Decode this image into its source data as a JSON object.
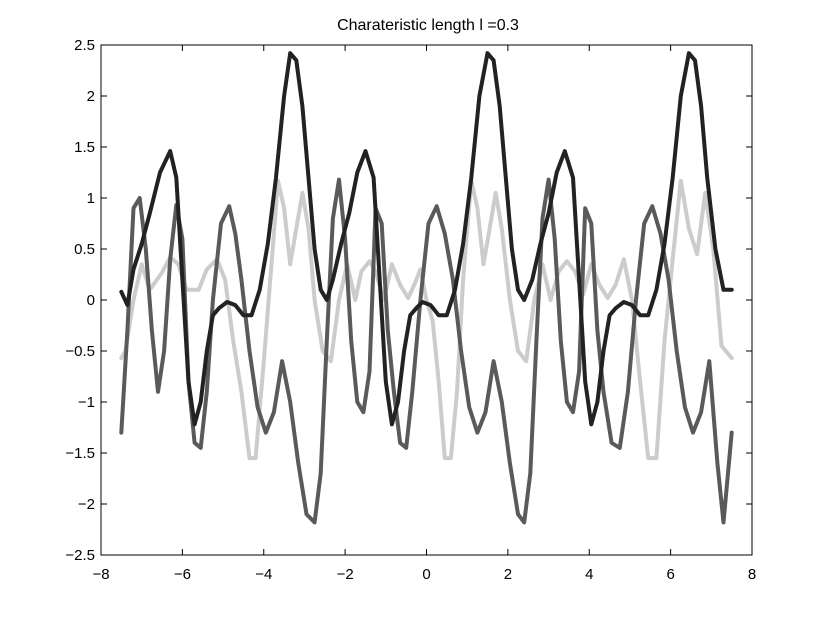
{
  "chart_data": {
    "type": "line",
    "title": "Charateristic length l =0.3",
    "xlabel": "",
    "ylabel": "",
    "xlim": [
      -8,
      8
    ],
    "ylim": [
      -2.5,
      2.5
    ],
    "xticks": [
      -8,
      -6,
      -4,
      -2,
      0,
      2,
      4,
      6,
      8
    ],
    "yticks": [
      2.5,
      2,
      1.5,
      1,
      0.5,
      0,
      -0.5,
      -1,
      -1.5,
      -2,
      -2.5
    ],
    "xtick_labels": [
      "−8",
      "−6",
      "−4",
      "−2",
      "0",
      "2",
      "4",
      "6",
      "8"
    ],
    "ytick_labels": [
      "2.5",
      "2",
      "1.5",
      "1",
      "0.5",
      "0",
      "−0.5",
      "−1",
      "−1.5",
      "−2",
      "−2.5"
    ],
    "grid": false,
    "series": [
      {
        "color": "#cccccc",
        "x": [
          -7.5,
          -7.4,
          -7.2,
          -7.0,
          -6.8,
          -6.5,
          -6.3,
          -6.1,
          -5.9,
          -5.6,
          -5.4,
          -5.15,
          -4.95,
          -4.75,
          -4.55,
          -4.35,
          -4.2,
          -4.0,
          -3.8,
          -3.65,
          -3.5,
          -3.35,
          -3.2,
          -3.05,
          -2.9,
          -2.75,
          -2.55,
          -2.35,
          -2.15,
          -1.95,
          -1.75,
          -1.6,
          -1.4,
          -1.25,
          -1.05,
          -0.85,
          -0.65,
          -0.45,
          -0.3,
          -0.15,
          0.0,
          0.15,
          0.3,
          0.45,
          0.6,
          0.75,
          0.9,
          1.1,
          1.25,
          1.4,
          1.55,
          1.7,
          1.85,
          2.05,
          2.25,
          2.45,
          2.65,
          2.85,
          3.05,
          3.25,
          3.45,
          3.65,
          3.85,
          4.05,
          4.25,
          4.45,
          4.65,
          4.85,
          5.05,
          5.25,
          5.45,
          5.65,
          5.85,
          6.05,
          6.25,
          6.45,
          6.65,
          6.85,
          7.05,
          7.25,
          7.5
        ],
        "y": [
          -0.57,
          -0.5,
          0.0,
          0.35,
          0.1,
          0.27,
          0.42,
          0.35,
          0.1,
          0.1,
          0.3,
          0.4,
          0.2,
          -0.4,
          -0.9,
          -1.55,
          -1.55,
          -0.6,
          0.4,
          1.17,
          0.9,
          0.35,
          0.7,
          1.05,
          0.7,
          0.0,
          -0.5,
          -0.6,
          0.0,
          0.35,
          0.0,
          0.28,
          0.38,
          0.28,
          0.0,
          0.35,
          0.15,
          0.02,
          0.15,
          0.3,
          0.0,
          -0.2,
          -0.8,
          -1.55,
          -1.55,
          -0.9,
          0.2,
          1.17,
          0.9,
          0.35,
          0.7,
          1.05,
          0.7,
          0.0,
          -0.5,
          -0.6,
          0.0,
          0.35,
          0.0,
          0.28,
          0.38,
          0.28,
          0.05,
          0.35,
          0.15,
          0.02,
          0.15,
          0.4,
          0.0,
          -0.8,
          -1.55,
          -1.55,
          -0.4,
          0.4,
          1.17,
          0.7,
          0.45,
          1.05,
          0.5,
          -0.45,
          -0.57
        ]
      },
      {
        "color": "#5a5a5a",
        "x": [
          -7.5,
          -7.35,
          -7.2,
          -7.05,
          -6.9,
          -6.75,
          -6.6,
          -6.45,
          -6.3,
          -6.15,
          -6.0,
          -5.85,
          -5.7,
          -5.55,
          -5.4,
          -5.25,
          -5.05,
          -4.85,
          -4.7,
          -4.55,
          -4.35,
          -4.15,
          -3.95,
          -3.75,
          -3.55,
          -3.35,
          -3.15,
          -2.95,
          -2.75,
          -2.6,
          -2.45,
          -2.3,
          -2.15,
          -2.0,
          -1.85,
          -1.7,
          -1.55,
          -1.4,
          -1.25,
          -1.1,
          -0.95,
          -0.8,
          -0.65,
          -0.5,
          -0.35,
          -0.15,
          0.05,
          0.25,
          0.45,
          0.65,
          0.85,
          1.05,
          1.25,
          1.45,
          1.65,
          1.85,
          2.05,
          2.25,
          2.4,
          2.55,
          2.7,
          2.85,
          3.0,
          3.15,
          3.3,
          3.45,
          3.6,
          3.75,
          3.9,
          4.05,
          4.2,
          4.35,
          4.55,
          4.75,
          4.95,
          5.15,
          5.35,
          5.55,
          5.75,
          5.95,
          6.15,
          6.35,
          6.55,
          6.75,
          6.95,
          7.15,
          7.3,
          7.5
        ],
        "y": [
          -1.3,
          -0.3,
          0.9,
          1.0,
          0.5,
          -0.3,
          -0.9,
          -0.5,
          0.4,
          0.93,
          0.6,
          -0.8,
          -1.4,
          -1.45,
          -0.9,
          0.0,
          0.75,
          0.92,
          0.65,
          0.2,
          -0.5,
          -1.05,
          -1.3,
          -1.1,
          -0.6,
          -1.0,
          -1.6,
          -2.1,
          -2.18,
          -1.7,
          -0.4,
          0.8,
          1.18,
          0.6,
          -0.4,
          -1.0,
          -1.1,
          -0.7,
          0.9,
          0.75,
          -0.3,
          -0.9,
          -1.4,
          -1.45,
          -0.9,
          0.0,
          0.75,
          0.92,
          0.65,
          0.2,
          -0.5,
          -1.05,
          -1.3,
          -1.1,
          -0.6,
          -1.0,
          -1.6,
          -2.1,
          -2.18,
          -1.7,
          -0.4,
          0.8,
          1.18,
          0.6,
          -0.4,
          -1.0,
          -1.1,
          -0.7,
          0.9,
          0.75,
          -0.3,
          -0.9,
          -1.4,
          -1.45,
          -0.9,
          0.0,
          0.75,
          0.92,
          0.65,
          0.2,
          -0.5,
          -1.05,
          -1.3,
          -1.1,
          -0.6,
          -1.6,
          -2.18,
          -1.3
        ]
      },
      {
        "color": "#222222",
        "x": [
          -7.5,
          -7.35,
          -7.2,
          -7.0,
          -6.8,
          -6.55,
          -6.3,
          -6.15,
          -6.0,
          -5.85,
          -5.7,
          -5.55,
          -5.4,
          -5.25,
          -5.1,
          -4.9,
          -4.7,
          -4.5,
          -4.3,
          -4.1,
          -3.9,
          -3.7,
          -3.5,
          -3.35,
          -3.2,
          -3.05,
          -2.9,
          -2.75,
          -2.6,
          -2.45,
          -2.3,
          -2.1,
          -1.9,
          -1.7,
          -1.5,
          -1.3,
          -1.15,
          -1.0,
          -0.85,
          -0.7,
          -0.55,
          -0.4,
          -0.25,
          -0.1,
          0.1,
          0.3,
          0.5,
          0.7,
          0.9,
          1.1,
          1.3,
          1.5,
          1.65,
          1.8,
          1.95,
          2.1,
          2.25,
          2.4,
          2.6,
          2.8,
          3.0,
          3.2,
          3.4,
          3.6,
          3.75,
          3.9,
          4.05,
          4.2,
          4.35,
          4.5,
          4.65,
          4.85,
          5.05,
          5.25,
          5.45,
          5.65,
          5.85,
          6.05,
          6.25,
          6.45,
          6.6,
          6.75,
          6.9,
          7.1,
          7.3,
          7.5
        ],
        "y": [
          0.08,
          -0.05,
          0.3,
          0.55,
          0.85,
          1.25,
          1.46,
          1.2,
          0.2,
          -0.8,
          -1.22,
          -1.0,
          -0.5,
          -0.15,
          -0.08,
          -0.02,
          -0.05,
          -0.15,
          -0.15,
          0.1,
          0.55,
          1.2,
          2.0,
          2.42,
          2.35,
          1.9,
          1.2,
          0.5,
          0.1,
          0.0,
          0.2,
          0.55,
          0.85,
          1.25,
          1.46,
          1.2,
          0.2,
          -0.8,
          -1.22,
          -1.0,
          -0.5,
          -0.15,
          -0.08,
          -0.02,
          -0.05,
          -0.15,
          -0.15,
          0.1,
          0.55,
          1.2,
          2.0,
          2.42,
          2.35,
          1.9,
          1.2,
          0.5,
          0.1,
          0.0,
          0.2,
          0.55,
          0.85,
          1.25,
          1.46,
          1.2,
          0.2,
          -0.8,
          -1.22,
          -1.0,
          -0.5,
          -0.15,
          -0.08,
          -0.02,
          -0.05,
          -0.15,
          -0.15,
          0.1,
          0.55,
          1.2,
          2.0,
          2.42,
          2.35,
          1.9,
          1.2,
          0.5,
          0.1,
          0.1
        ]
      }
    ]
  }
}
